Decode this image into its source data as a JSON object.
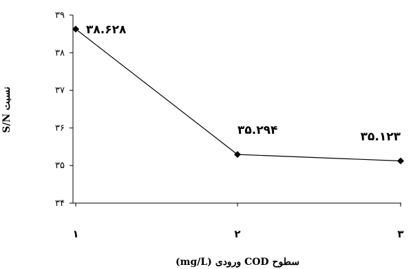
{
  "chart_data": {
    "type": "line",
    "x": [
      1,
      2,
      3
    ],
    "x_tick_labels": [
      "۱",
      "۲",
      "۳"
    ],
    "values": [
      38.628,
      35.294,
      35.123
    ],
    "data_labels": [
      "۳۸.۶۲۸",
      "۳۵.۲۹۴",
      "۳۵.۱۲۳"
    ],
    "ylim": [
      34,
      39
    ],
    "y_ticks": [
      34,
      35,
      36,
      37,
      38,
      39
    ],
    "y_tick_labels": [
      "۳۴",
      "۳۵",
      "۳۶",
      "۳۷",
      "۳۸",
      "۳۹"
    ],
    "xlabel": "سطوح COD ورودی (mg/L)",
    "ylabel": "نسبت S/N",
    "marker": "diamond",
    "line_color": "#000000",
    "grid": false,
    "legend": false
  }
}
